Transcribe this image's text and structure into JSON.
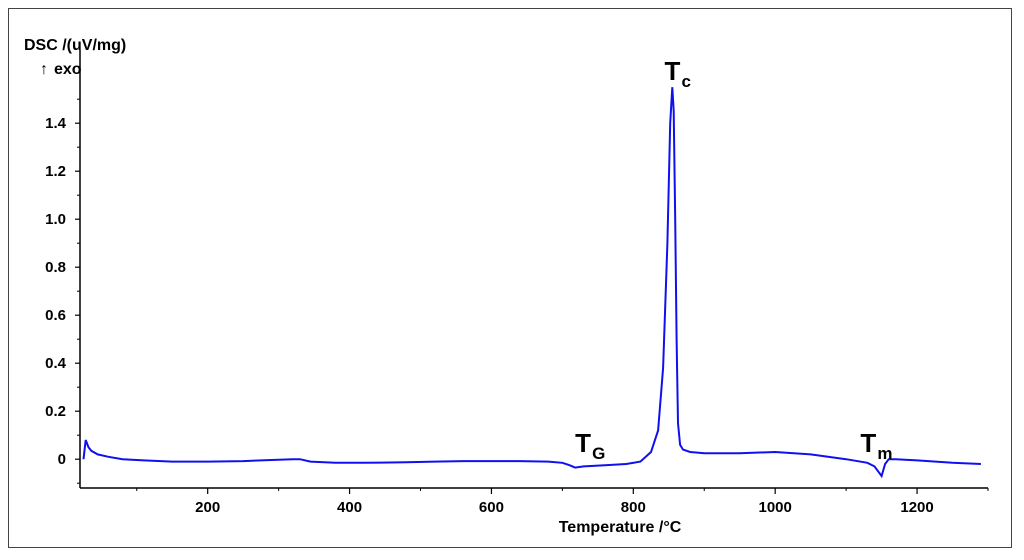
{
  "chart_data": {
    "type": "line",
    "ylabel": "DSC /(uV/mg)",
    "ylabel_note": "exo",
    "xlabel": "Temperature /°C",
    "xlim": [
      20,
      1300
    ],
    "ylim": [
      -0.12,
      1.58
    ],
    "x_ticks": [
      200,
      400,
      600,
      800,
      1000,
      1200
    ],
    "x_tick_labels": [
      "200",
      "400",
      "600",
      "800",
      "1000",
      "1200"
    ],
    "y_ticks": [
      0,
      0.2,
      0.4,
      0.6,
      0.8,
      1.0,
      1.2,
      1.4
    ],
    "y_tick_labels": [
      "0",
      "0.2",
      "0.4",
      "0.6",
      "0.8",
      "1.0",
      "1.2",
      "1.4"
    ],
    "grid": false,
    "line_color": "#1010ee",
    "series": [
      {
        "x": [
          25,
          28,
          30,
          32,
          36,
          45,
          60,
          80,
          110,
          150,
          200,
          250,
          300,
          320,
          330,
          345,
          380,
          420,
          480,
          520,
          560,
          600,
          640,
          680,
          700,
          710,
          718,
          730,
          760,
          790,
          810,
          825,
          835,
          842,
          848,
          852,
          855,
          857,
          859,
          861,
          863,
          866,
          870,
          880,
          900,
          950,
          1000,
          1050,
          1100,
          1130,
          1140,
          1145,
          1150,
          1155,
          1160,
          1170,
          1200,
          1250,
          1290
        ],
        "y": [
          0,
          0.08,
          0.065,
          0.05,
          0.035,
          0.02,
          0.01,
          0.0,
          -0.005,
          -0.01,
          -0.01,
          -0.008,
          -0.002,
          0.0,
          0.0,
          -0.01,
          -0.015,
          -0.015,
          -0.013,
          -0.01,
          -0.008,
          -0.008,
          -0.008,
          -0.01,
          -0.015,
          -0.025,
          -0.035,
          -0.03,
          -0.025,
          -0.02,
          -0.01,
          0.03,
          0.12,
          0.38,
          0.9,
          1.4,
          1.55,
          1.45,
          1.0,
          0.5,
          0.15,
          0.06,
          0.04,
          0.03,
          0.025,
          0.025,
          0.03,
          0.02,
          0.0,
          -0.015,
          -0.03,
          -0.05,
          -0.07,
          -0.02,
          0.0,
          0.0,
          -0.005,
          -0.015,
          -0.02
        ]
      }
    ],
    "annotations": [
      {
        "main": "T",
        "sub": "G",
        "x": 718,
        "y": 0.03
      },
      {
        "main": "T",
        "sub": "c",
        "x": 844,
        "y": 1.58
      },
      {
        "main": "T",
        "sub": "m",
        "x": 1120,
        "y": 0.03
      }
    ]
  }
}
